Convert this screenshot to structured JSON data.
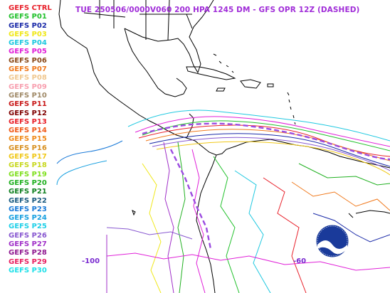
{
  "title": "TUE 250506/0000V060  200 HPA 1245 DM - GFS OPR 12Z (DASHED)",
  "legend": [
    {
      "label": "GEFS CTRL",
      "color": "#e8202a"
    },
    {
      "label": "GEFS P01",
      "color": "#22c12c"
    },
    {
      "label": "GEFS P02",
      "color": "#1a2aa8"
    },
    {
      "label": "GEFS P03",
      "color": "#f0e81a"
    },
    {
      "label": "GEFS P04",
      "color": "#1ec8e0"
    },
    {
      "label": "GEFS P05",
      "color": "#e020d8"
    },
    {
      "label": "GEFS P06",
      "color": "#8a4a1a"
    },
    {
      "label": "GEFS P07",
      "color": "#f07a1e"
    },
    {
      "label": "GEFS P08",
      "color": "#f0c890"
    },
    {
      "label": "GEFS P09",
      "color": "#f8a0b0"
    },
    {
      "label": "GEFS P10",
      "color": "#a08a68"
    },
    {
      "label": "GEFS P11",
      "color": "#c81818"
    },
    {
      "label": "GEFS P12",
      "color": "#800000"
    },
    {
      "label": "GEFS P13",
      "color": "#e8202a"
    },
    {
      "label": "GEFS P14",
      "color": "#f05a1a"
    },
    {
      "label": "GEFS P15",
      "color": "#f08a1a"
    },
    {
      "label": "GEFS P16",
      "color": "#d89020"
    },
    {
      "label": "GEFS P17",
      "color": "#f0c818"
    },
    {
      "label": "GEFS P18",
      "color": "#c8d820"
    },
    {
      "label": "GEFS P19",
      "color": "#80e020"
    },
    {
      "label": "GEFS P20",
      "color": "#20b020"
    },
    {
      "label": "GEFS P21",
      "color": "#108020"
    },
    {
      "label": "GEFS P22",
      "color": "#1a5a80"
    },
    {
      "label": "GEFS P23",
      "color": "#1a7ad8"
    },
    {
      "label": "GEFS P24",
      "color": "#18a0e0"
    },
    {
      "label": "GEFS P25",
      "color": "#20d0e8"
    },
    {
      "label": "GEFS P26",
      "color": "#8858d0"
    },
    {
      "label": "GEFS P27",
      "color": "#a030c8"
    },
    {
      "label": "GEFS P28",
      "color": "#901890"
    },
    {
      "label": "GEFS P29",
      "color": "#e82060"
    },
    {
      "label": "GEFS P30",
      "color": "#20e0e8"
    }
  ],
  "axis": {
    "lon_ticks": [
      {
        "label": "-100"
      },
      {
        "label": "-60"
      }
    ]
  },
  "colors": {
    "coastline": "#000000",
    "title": "#a02cd8",
    "tick": "#7a2bd0",
    "gfs_opr_dashed": "#9b4be0"
  },
  "logo": {
    "icon": "noaa-logo"
  }
}
